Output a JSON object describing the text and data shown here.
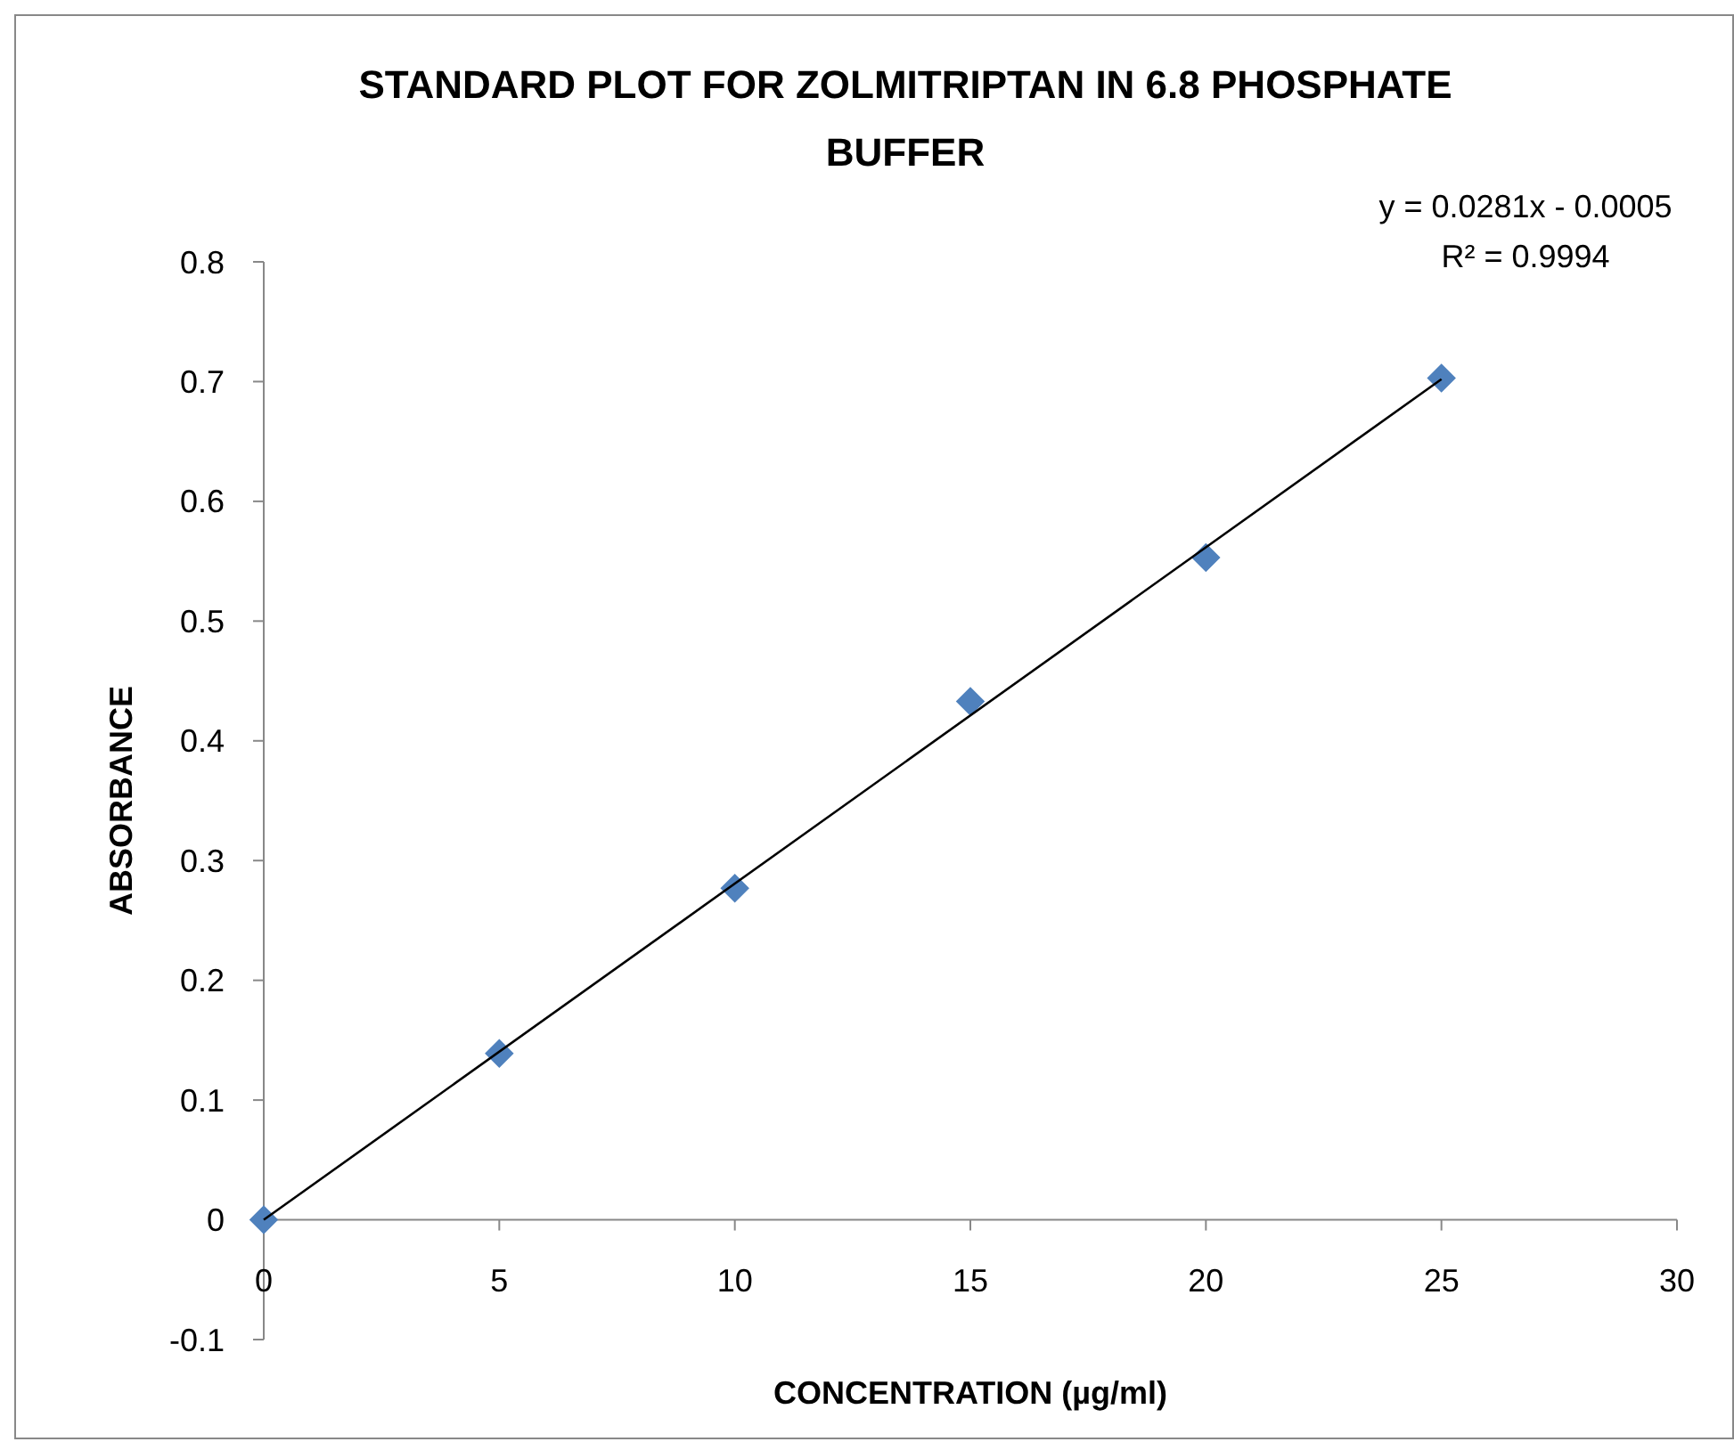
{
  "chart_data": {
    "type": "scatter",
    "title": "STANDARD PLOT FOR ZOLMITRIPTAN IN 6.8 PHOSPHATE BUFFER",
    "xlabel": "CONCENTRATION (µg/ml)",
    "ylabel": "ABSORBANCE",
    "annotations": [
      "y = 0.0281x - 0.0005",
      "R² = 0.9994"
    ],
    "x": [
      0,
      5,
      10,
      15,
      20,
      25
    ],
    "series": [
      {
        "color": "#4f81bd",
        "values": [
          0,
          0.139,
          0.277,
          0.433,
          0.553,
          0.703
        ],
        "marker": "diamond"
      },
      {
        "type": "line",
        "color": "#000000",
        "x": [
          0,
          25
        ],
        "values": [
          0,
          0.702
        ],
        "marker": "none",
        "line_style": "solid"
      }
    ],
    "xlim": [
      0,
      30
    ],
    "xticks": [
      0,
      5,
      10,
      15,
      20,
      25,
      30
    ],
    "ylim": [
      -0.1,
      0.8
    ],
    "yticks": [
      -0.1,
      0,
      0.1,
      0.2,
      0.3,
      0.4,
      0.5,
      0.6,
      0.7,
      0.8
    ],
    "grid": false
  }
}
